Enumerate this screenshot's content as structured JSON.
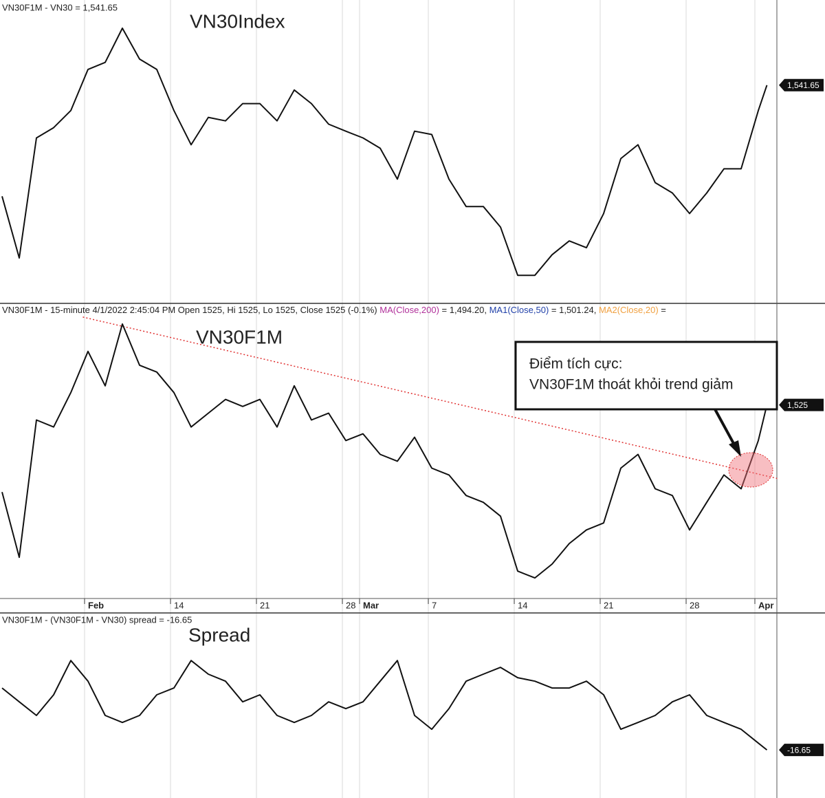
{
  "chart_data": [
    {
      "type": "line",
      "title": "VN30Index",
      "header": "VN30F1M - VN30 = 1,541.65",
      "last_value_label": "1,541.65",
      "color": "#111111",
      "xlim": [
        -5.12,
        40.08
      ],
      "ylim": [
        1436,
        1583
      ],
      "x": [
        -5,
        -4,
        -3,
        -2,
        -1,
        0,
        1,
        2,
        3,
        4,
        5,
        6,
        7,
        8,
        9,
        10,
        11,
        12,
        13,
        14,
        15,
        16,
        17,
        18,
        19,
        20,
        21,
        22,
        23,
        24,
        25,
        26,
        27,
        28,
        29,
        30,
        31,
        32,
        33,
        34,
        35,
        36,
        37,
        38,
        39,
        39.5
      ],
      "values": [
        1487.7,
        1457.7,
        1516.0,
        1521.0,
        1529.3,
        1549.3,
        1552.7,
        1569.3,
        1554.3,
        1549.3,
        1529.3,
        1512.7,
        1526.0,
        1524.3,
        1532.7,
        1532.7,
        1524.3,
        1539.3,
        1532.7,
        1522.7,
        1519.3,
        1516.0,
        1511.0,
        1496.0,
        1519.3,
        1517.7,
        1496.0,
        1482.7,
        1482.7,
        1472.7,
        1449.3,
        1449.3,
        1459.3,
        1466.0,
        1462.7,
        1479.3,
        1506.0,
        1512.7,
        1494.3,
        1489.3,
        1479.3,
        1489.3,
        1501.0,
        1501.0,
        1529.3,
        1541.65
      ]
    },
    {
      "type": "line",
      "title": "VN30F1M",
      "header": "VN30F1M - 15-minute 4/1/2022 2:45:04 PM Open 1525, Hi 1525, Lo 1525, Close 1525 (-0.1%)",
      "ma_labels": [
        {
          "name": "MA(Close,200)",
          "color": "#b0309a",
          "text": " = 1,494.20, "
        },
        {
          "name": "MA1(Close,50)",
          "color": "#1f3fa8",
          "text": " = 1,501.24, "
        },
        {
          "name": "MA2(Close,20)",
          "color": "#f0a040",
          "text": " ="
        }
      ],
      "last_value_label": "1,525",
      "color": "#111111",
      "xlim": [
        -5.12,
        40.08
      ],
      "ylim": [
        1431,
        1574
      ],
      "xticks": [
        {
          "value": 0,
          "label": "Feb"
        },
        {
          "value": 5,
          "label": "14"
        },
        {
          "value": 10,
          "label": "21"
        },
        {
          "value": 15,
          "label": "28"
        },
        {
          "value": 16,
          "label": "Mar"
        },
        {
          "value": 20,
          "label": "7"
        },
        {
          "value": 25,
          "label": "14"
        },
        {
          "value": 30,
          "label": "21"
        },
        {
          "value": 35,
          "label": "28"
        },
        {
          "value": 39,
          "label": "Apr"
        }
      ],
      "x": [
        -5,
        -4,
        -3,
        -2,
        -1,
        0,
        1,
        2,
        3,
        4,
        5,
        6,
        7,
        8,
        9,
        10,
        11,
        12,
        13,
        14,
        15,
        16,
        17,
        18,
        19,
        20,
        21,
        22,
        23,
        24,
        25,
        26,
        27,
        28,
        29,
        30,
        31,
        32,
        33,
        34,
        35,
        36,
        37,
        38,
        39,
        39.5
      ],
      "values": [
        1482.7,
        1451.0,
        1517.7,
        1514.3,
        1531.0,
        1551.0,
        1534.3,
        1564.3,
        1544.3,
        1541.0,
        1531.0,
        1514.3,
        1521.0,
        1527.7,
        1524.3,
        1527.7,
        1514.3,
        1534.3,
        1517.7,
        1521.0,
        1507.7,
        1511.0,
        1501.0,
        1497.7,
        1509.3,
        1494.3,
        1491.0,
        1481.0,
        1477.7,
        1471.0,
        1444.3,
        1441.0,
        1447.7,
        1457.7,
        1464.3,
        1467.7,
        1494.3,
        1501.0,
        1484.3,
        1481.0,
        1464.3,
        1477.7,
        1491.0,
        1484.3,
        1507.7,
        1525
      ],
      "trendline": {
        "color": "#e03030",
        "x": [
          -0.3,
          40.1
        ],
        "values": [
          1567.7,
          1489.3
        ]
      },
      "annotation": [
        "Điểm tích cực:",
        "VN30F1M thoát khỏi trend giảm"
      ]
    },
    {
      "type": "line",
      "title": "Spread",
      "header": "VN30F1M - (VN30F1M - VN30) spread = -16.65",
      "last_value_label": "-16.65",
      "color": "#111111",
      "xlim": [
        -5.12,
        40.08
      ],
      "ylim": [
        -28.3,
        16.2
      ],
      "x": [
        -5,
        -4,
        -3,
        -2,
        -1,
        0,
        1,
        2,
        3,
        4,
        5,
        6,
        7,
        8,
        9,
        10,
        11,
        12,
        13,
        14,
        15,
        16,
        17,
        18,
        19,
        20,
        21,
        22,
        23,
        24,
        25,
        26,
        27,
        28,
        29,
        30,
        31,
        32,
        33,
        34,
        35,
        36,
        37,
        38,
        39,
        39.5
      ],
      "values": [
        -1.65,
        -5.0,
        -8.3,
        -3.3,
        5.0,
        0.0,
        -8.3,
        -10.0,
        -8.3,
        -3.3,
        -1.65,
        5.0,
        1.7,
        0.0,
        -5.0,
        -3.3,
        -8.3,
        -10.0,
        -8.3,
        -5.0,
        -6.65,
        -5.0,
        0.0,
        5.0,
        -8.3,
        -11.65,
        -6.65,
        0.0,
        1.7,
        3.35,
        0.85,
        0.0,
        -1.65,
        -1.65,
        0.0,
        -3.3,
        -11.65,
        -10.0,
        -8.3,
        -5.0,
        -3.3,
        -8.3,
        -10.0,
        -11.65,
        -15.0,
        -16.65
      ]
    }
  ]
}
